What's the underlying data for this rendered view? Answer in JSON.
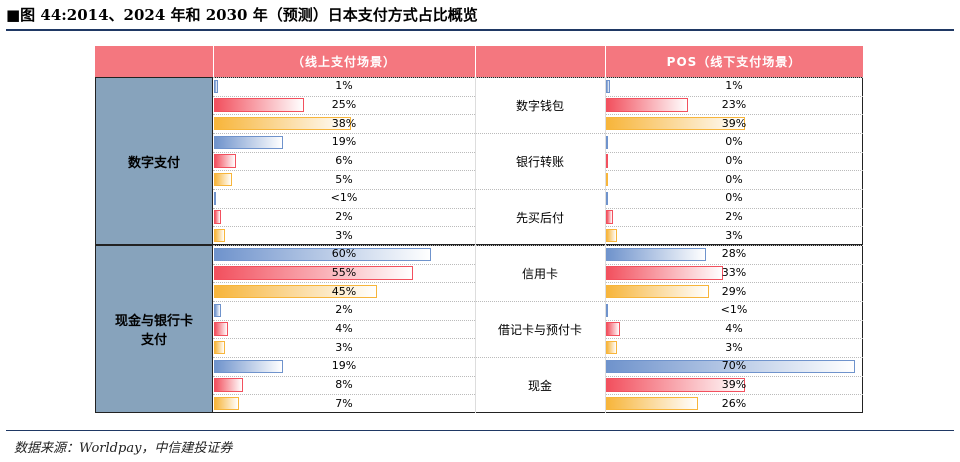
{
  "title": "■图 44:2014、2024 年和 2030 年（预测）日本支付方式占比概览",
  "source": "数据来源：Worldpay，中信建投证券",
  "chart_data": {
    "type": "table-bar",
    "headers": [
      "（线上支付场景）",
      "POS（线下支付场景）"
    ],
    "colors": [
      "#6f93cc",
      "#f2505e",
      "#f7b53b"
    ],
    "xlim": [
      0,
      72
    ],
    "groups": [
      {
        "label": "数字支付",
        "methods": [
          {
            "label": "数字钱包",
            "online": [
              1,
              25,
              38
            ],
            "online_labels": [
              "1%",
              "25%",
              "38%"
            ],
            "offline": [
              1,
              23,
              39
            ],
            "offline_labels": [
              "1%",
              "23%",
              "39%"
            ]
          },
          {
            "label": "银行转账",
            "online": [
              19,
              6,
              5
            ],
            "online_labels": [
              "19%",
              "6%",
              "5%"
            ],
            "offline": [
              0,
              0,
              0
            ],
            "offline_labels": [
              "0%",
              "0%",
              "0%"
            ]
          },
          {
            "label": "先买后付",
            "online": [
              0.5,
              2,
              3
            ],
            "online_labels": [
              "<1%",
              "2%",
              "3%"
            ],
            "offline": [
              0,
              2,
              3
            ],
            "offline_labels": [
              "0%",
              "2%",
              "3%"
            ]
          }
        ]
      },
      {
        "label": "现金与银行卡支付",
        "methods": [
          {
            "label": "信用卡",
            "online": [
              60,
              55,
              45
            ],
            "online_labels": [
              "60%",
              "55%",
              "45%"
            ],
            "offline": [
              28,
              33,
              29
            ],
            "offline_labels": [
              "28%",
              "33%",
              "29%"
            ]
          },
          {
            "label": "借记卡与预付卡",
            "online": [
              2,
              4,
              3
            ],
            "online_labels": [
              "2%",
              "4%",
              "3%"
            ],
            "offline": [
              0.5,
              4,
              3
            ],
            "offline_labels": [
              "<1%",
              "4%",
              "3%"
            ]
          },
          {
            "label": "现金",
            "online": [
              19,
              8,
              7
            ],
            "online_labels": [
              "19%",
              "8%",
              "7%"
            ],
            "offline": [
              70,
              39,
              26
            ],
            "offline_labels": [
              "70%",
              "39%",
              "26%"
            ]
          }
        ]
      }
    ]
  }
}
